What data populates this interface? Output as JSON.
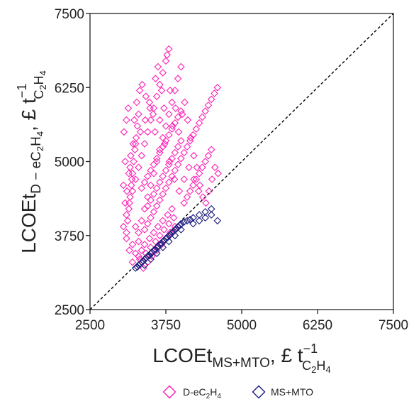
{
  "chart_data": {
    "type": "scatter",
    "title": "",
    "xlabel": {
      "main": "LCOEt",
      "sub": "MS+MTO",
      "unit_prefix": ", £ t",
      "unit_sup": "−1",
      "unit_sub": "C",
      "unit_sub2": "2",
      "unit_sub3": "H",
      "unit_sub4": "4"
    },
    "ylabel": {
      "main": "LCOEt",
      "sub": "D − eC",
      "sub2": "2",
      "sub3": "H",
      "sub4": "4",
      "unit_prefix": ", £ t",
      "unit_sup": "−1",
      "unit_sub": "C",
      "unit_sub2": "2",
      "unit_sub3": "H",
      "unit_sub4": "4"
    },
    "xlim": [
      2500,
      7500
    ],
    "ylim": [
      2500,
      7500
    ],
    "xticks": [
      2500,
      3750,
      5000,
      6250,
      7500
    ],
    "yticks": [
      2500,
      3750,
      5000,
      6250,
      7500
    ],
    "xtick_labels": [
      "2500",
      "3750",
      "5000",
      "6250",
      "7500"
    ],
    "ytick_labels": [
      "2500",
      "3750",
      "5000",
      "6250",
      "7500"
    ],
    "grid": false,
    "reference_line": {
      "style": "dashed",
      "color": "#000000",
      "from": [
        2500,
        2500
      ],
      "to": [
        7500,
        7500
      ]
    },
    "legend_position": "bottom-center",
    "series": [
      {
        "name": "D-eC2H4",
        "legend": {
          "main": "D-eC",
          "sub": "2",
          "mid": "H",
          "sub2": "4"
        },
        "marker": "diamond-open",
        "color": "#ff1fb4",
        "points": [
          [
            3300,
            3400
          ],
          [
            3320,
            3350
          ],
          [
            3350,
            3500
          ],
          [
            3380,
            3200
          ],
          [
            3400,
            3600
          ],
          [
            3420,
            3450
          ],
          [
            3450,
            3300
          ],
          [
            3480,
            3700
          ],
          [
            3500,
            3550
          ],
          [
            3520,
            3400
          ],
          [
            3550,
            3800
          ],
          [
            3580,
            3650
          ],
          [
            3600,
            3500
          ],
          [
            3620,
            3900
          ],
          [
            3650,
            3750
          ],
          [
            3680,
            3600
          ],
          [
            3700,
            4000
          ],
          [
            3720,
            3850
          ],
          [
            3750,
            3700
          ],
          [
            3780,
            4100
          ],
          [
            3800,
            3950
          ],
          [
            3820,
            3800
          ],
          [
            3850,
            4200
          ],
          [
            3880,
            4050
          ],
          [
            3900,
            3900
          ],
          [
            3300,
            3800
          ],
          [
            3350,
            4000
          ],
          [
            3400,
            4200
          ],
          [
            3450,
            4400
          ],
          [
            3500,
            4600
          ],
          [
            3550,
            4800
          ],
          [
            3600,
            5000
          ],
          [
            3650,
            5200
          ],
          [
            3700,
            5400
          ],
          [
            3750,
            5600
          ],
          [
            3800,
            5800
          ],
          [
            3850,
            6000
          ],
          [
            3900,
            6200
          ],
          [
            3950,
            6400
          ],
          [
            4000,
            6600
          ],
          [
            3200,
            3600
          ],
          [
            3250,
            3900
          ],
          [
            3100,
            4100
          ],
          [
            3150,
            4300
          ],
          [
            3200,
            4500
          ],
          [
            3250,
            4700
          ],
          [
            3300,
            4900
          ],
          [
            3350,
            5100
          ],
          [
            3400,
            5300
          ],
          [
            3450,
            5500
          ],
          [
            3500,
            5700
          ],
          [
            3550,
            5900
          ],
          [
            3600,
            6100
          ],
          [
            3650,
            6300
          ],
          [
            3700,
            6500
          ],
          [
            3750,
            6700
          ],
          [
            3800,
            6900
          ],
          [
            3100,
            3800
          ],
          [
            3120,
            4000
          ],
          [
            3140,
            4200
          ],
          [
            3160,
            4400
          ],
          [
            3180,
            4600
          ],
          [
            3200,
            4800
          ],
          [
            3220,
            5000
          ],
          [
            3240,
            5200
          ],
          [
            3260,
            5400
          ],
          [
            3280,
            5600
          ],
          [
            3300,
            5800
          ],
          [
            3400,
            3850
          ],
          [
            3450,
            3950
          ],
          [
            3500,
            4050
          ],
          [
            3550,
            4150
          ],
          [
            3600,
            4250
          ],
          [
            3650,
            4350
          ],
          [
            3700,
            4450
          ],
          [
            3750,
            4550
          ],
          [
            3800,
            4650
          ],
          [
            3850,
            4750
          ],
          [
            3900,
            4850
          ],
          [
            3950,
            4950
          ],
          [
            4000,
            5050
          ],
          [
            4050,
            5150
          ],
          [
            4100,
            5250
          ],
          [
            4150,
            5350
          ],
          [
            4200,
            5450
          ],
          [
            4250,
            5550
          ],
          [
            4300,
            5650
          ],
          [
            4350,
            5750
          ],
          [
            4400,
            5850
          ],
          [
            4450,
            5950
          ],
          [
            4500,
            6050
          ],
          [
            4550,
            6150
          ],
          [
            4600,
            6250
          ],
          [
            4050,
            4300
          ],
          [
            4100,
            4400
          ],
          [
            4150,
            4500
          ],
          [
            4200,
            4600
          ],
          [
            4250,
            4700
          ],
          [
            4300,
            4800
          ],
          [
            4350,
            4900
          ],
          [
            4400,
            5000
          ],
          [
            4450,
            5100
          ],
          [
            4500,
            5200
          ],
          [
            3050,
            4600
          ],
          [
            3080,
            5000
          ],
          [
            3060,
            5500
          ],
          [
            3100,
            5700
          ],
          [
            3130,
            5900
          ],
          [
            3160,
            4900
          ],
          [
            3190,
            4700
          ],
          [
            3210,
            5300
          ],
          [
            3230,
            5700
          ],
          [
            3270,
            6000
          ],
          [
            3320,
            6200
          ],
          [
            3360,
            6300
          ],
          [
            3420,
            6100
          ],
          [
            3480,
            6000
          ],
          [
            3540,
            5800
          ],
          [
            3580,
            6400
          ],
          [
            3620,
            6600
          ],
          [
            3680,
            6200
          ],
          [
            3720,
            5900
          ],
          [
            3770,
            6800
          ],
          [
            3820,
            6200
          ],
          [
            3860,
            5600
          ],
          [
            3910,
            5900
          ],
          [
            3960,
            5500
          ],
          [
            4020,
            5800
          ],
          [
            4060,
            6000
          ],
          [
            4110,
            5700
          ],
          [
            4160,
            5400
          ],
          [
            4210,
            5100
          ],
          [
            4260,
            4900
          ],
          [
            4310,
            4600
          ],
          [
            4360,
            4400
          ],
          [
            4410,
            4300
          ],
          [
            4460,
            4500
          ],
          [
            4510,
            4700
          ],
          [
            4560,
            4900
          ],
          [
            4610,
            4800
          ],
          [
            3350,
            4550
          ],
          [
            3400,
            4650
          ],
          [
            3450,
            4750
          ],
          [
            3500,
            4850
          ],
          [
            3550,
            4950
          ],
          [
            3600,
            5050
          ],
          [
            3650,
            5150
          ],
          [
            3700,
            5250
          ],
          [
            3750,
            5350
          ],
          [
            3800,
            5450
          ],
          [
            3850,
            5550
          ],
          [
            3900,
            5650
          ],
          [
            3950,
            5750
          ],
          [
            4000,
            5850
          ],
          [
            3450,
            4250
          ],
          [
            3500,
            4350
          ],
          [
            3550,
            4450
          ],
          [
            3600,
            4550
          ],
          [
            3650,
            4650
          ],
          [
            3700,
            4750
          ],
          [
            3750,
            4850
          ],
          [
            3800,
            4950
          ],
          [
            3850,
            5050
          ],
          [
            3900,
            5150
          ],
          [
            3950,
            5250
          ],
          [
            4000,
            5350
          ],
          [
            3300,
            3650
          ],
          [
            3250,
            3450
          ],
          [
            3200,
            3300
          ],
          [
            3150,
            3500
          ],
          [
            3100,
            3700
          ],
          [
            3050,
            3900
          ],
          [
            3080,
            4300
          ],
          [
            3110,
            4500
          ],
          [
            3140,
            4800
          ],
          [
            3170,
            5100
          ],
          [
            3250,
            5300
          ],
          [
            3330,
            5500
          ],
          [
            3410,
            5700
          ],
          [
            3490,
            5900
          ],
          [
            3570,
            5500
          ],
          [
            3650,
            5700
          ],
          [
            3730,
            5300
          ],
          [
            3810,
            5000
          ],
          [
            3890,
            4700
          ],
          [
            3970,
            4500
          ],
          [
            4050,
            4700
          ],
          [
            4130,
            4900
          ],
          [
            4210,
            4700
          ],
          [
            4290,
            4500
          ]
        ]
      },
      {
        "name": "MS+MTO",
        "legend": {
          "main": "MS+MTO"
        },
        "marker": "diamond-open",
        "color": "#1a1a7e",
        "points": [
          [
            3250,
            3200
          ],
          [
            3300,
            3250
          ],
          [
            3350,
            3300
          ],
          [
            3400,
            3350
          ],
          [
            3450,
            3400
          ],
          [
            3500,
            3450
          ],
          [
            3550,
            3500
          ],
          [
            3600,
            3550
          ],
          [
            3650,
            3600
          ],
          [
            3700,
            3650
          ],
          [
            3750,
            3700
          ],
          [
            3800,
            3750
          ],
          [
            3850,
            3800
          ],
          [
            3900,
            3850
          ],
          [
            3950,
            3900
          ],
          [
            4000,
            3950
          ],
          [
            4100,
            4000
          ],
          [
            4200,
            4050
          ],
          [
            4300,
            4100
          ],
          [
            4400,
            4150
          ],
          [
            4500,
            4200
          ],
          [
            4600,
            4000
          ],
          [
            3280,
            3220
          ],
          [
            3320,
            3270
          ],
          [
            3380,
            3320
          ],
          [
            3420,
            3370
          ],
          [
            3480,
            3410
          ],
          [
            3520,
            3460
          ],
          [
            3580,
            3510
          ],
          [
            3620,
            3560
          ],
          [
            3680,
            3620
          ],
          [
            3720,
            3660
          ],
          [
            3780,
            3720
          ],
          [
            3820,
            3760
          ],
          [
            3880,
            3820
          ],
          [
            3920,
            3860
          ],
          [
            3980,
            3920
          ],
          [
            4050,
            3980
          ],
          [
            3600,
            3450
          ],
          [
            3700,
            3550
          ],
          [
            3800,
            3650
          ],
          [
            3900,
            3750
          ],
          [
            4000,
            3850
          ],
          [
            3500,
            3350
          ],
          [
            3400,
            3250
          ],
          [
            4200,
            3950
          ],
          [
            4300,
            4000
          ],
          [
            4400,
            4050
          ],
          [
            4500,
            4100
          ],
          [
            4150,
            4020
          ]
        ]
      }
    ]
  }
}
